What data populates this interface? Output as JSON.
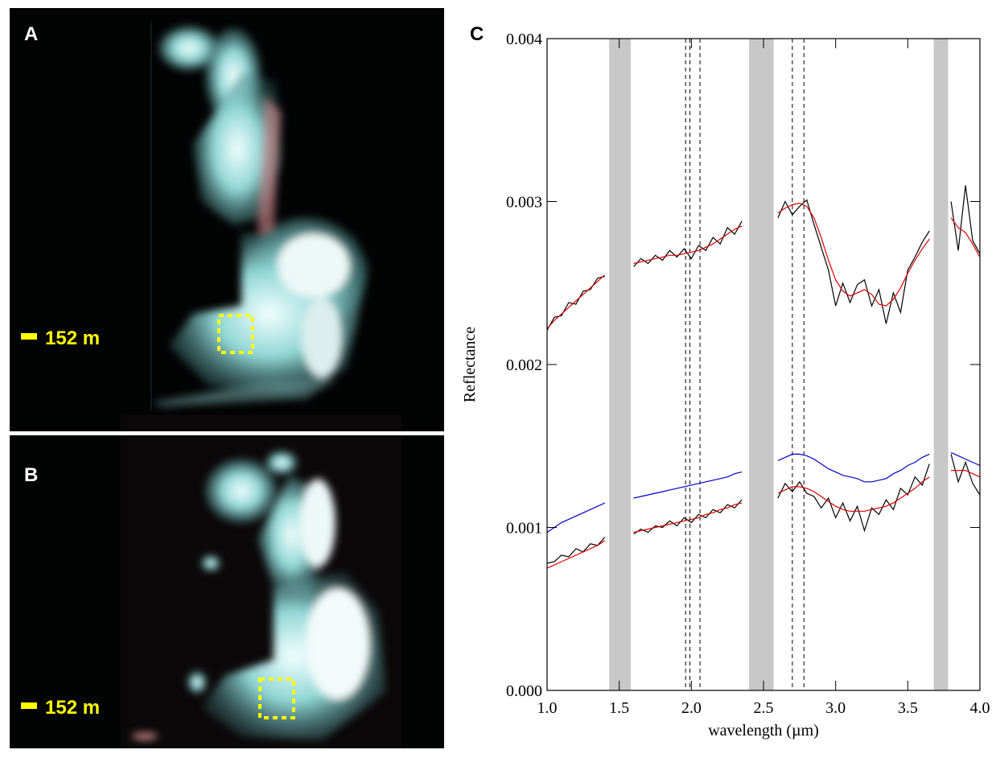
{
  "panels": [
    {
      "label": "A",
      "scale": "152 m"
    },
    {
      "label": "B",
      "scale": "152 m"
    }
  ],
  "chart_data": {
    "type": "line",
    "panel_label": "C",
    "xlabel": "wavelength (µm)",
    "ylabel": "Reflectance",
    "xlim": [
      1.0,
      4.0
    ],
    "ylim": [
      0.0,
      0.004
    ],
    "xticks": [
      {
        "value": 1.0,
        "label": "1.0"
      },
      {
        "value": 1.5,
        "label": "1.5"
      },
      {
        "value": 2.0,
        "label": "2.0"
      },
      {
        "value": 2.5,
        "label": "2.5"
      },
      {
        "value": 3.0,
        "label": "3.0"
      },
      {
        "value": 3.5,
        "label": "3.5"
      },
      {
        "value": 4.0,
        "label": "4.0"
      }
    ],
    "yticks": [
      {
        "value": 0.0,
        "label": "0.000"
      },
      {
        "value": 0.001,
        "label": "0.001"
      },
      {
        "value": 0.002,
        "label": "0.002"
      },
      {
        "value": 0.003,
        "label": "0.003"
      },
      {
        "value": 0.004,
        "label": "0.004"
      }
    ],
    "bands": [
      [
        1.43,
        1.58
      ],
      [
        2.4,
        2.57
      ],
      [
        3.68,
        3.78
      ]
    ],
    "band_color": "#c8c8c8",
    "vlines": [
      1.96,
      1.99,
      2.06,
      2.7,
      2.78
    ],
    "x": [
      1.0,
      1.05,
      1.1,
      1.15,
      1.2,
      1.25,
      1.3,
      1.35,
      1.4,
      1.45,
      1.5,
      1.55,
      1.6,
      1.65,
      1.7,
      1.75,
      1.8,
      1.85,
      1.9,
      1.95,
      2.0,
      2.05,
      2.1,
      2.15,
      2.2,
      2.25,
      2.3,
      2.35,
      2.4,
      2.45,
      2.5,
      2.55,
      2.6,
      2.65,
      2.7,
      2.75,
      2.8,
      2.85,
      2.9,
      2.95,
      3.0,
      3.05,
      3.1,
      3.15,
      3.2,
      3.25,
      3.3,
      3.35,
      3.4,
      3.45,
      3.5,
      3.55,
      3.6,
      3.65,
      3.7,
      3.75,
      3.8,
      3.85,
      3.9,
      3.95,
      4.0
    ],
    "series": [
      {
        "color": "#0000cc",
        "values": [
          0.00097,
          0.001,
          0.00103,
          0.00105,
          0.00107,
          0.00109,
          0.00111,
          0.00113,
          0.00115,
          null,
          null,
          null,
          0.00118,
          0.00119,
          0.0012,
          0.00121,
          0.00122,
          0.00123,
          0.00124,
          0.00125,
          0.00126,
          0.00127,
          0.00128,
          0.00129,
          0.0013,
          0.00131,
          0.00133,
          0.00134,
          null,
          null,
          null,
          null,
          0.00141,
          0.00143,
          0.00145,
          0.00145,
          0.00144,
          0.00142,
          0.00139,
          0.00136,
          0.00134,
          0.00132,
          0.00131,
          0.0013,
          0.00128,
          0.00128,
          0.00129,
          0.0013,
          0.00133,
          0.00135,
          0.00138,
          0.0014,
          0.00143,
          0.00145,
          null,
          null,
          0.00146,
          0.00144,
          0.00142,
          0.0014,
          0.00138
        ]
      },
      {
        "color": "#000000",
        "values": [
          0.00221,
          0.00229,
          0.0023,
          0.00238,
          0.00237,
          0.00245,
          0.00246,
          0.00253,
          0.00254,
          null,
          null,
          null,
          0.0026,
          0.00265,
          0.00262,
          0.00267,
          0.00264,
          0.0027,
          0.00266,
          0.00271,
          0.00265,
          0.00273,
          0.0027,
          0.00278,
          0.00274,
          0.00284,
          0.0028,
          0.00288,
          null,
          null,
          null,
          null,
          0.0029,
          0.003,
          0.00292,
          0.00297,
          0.00301,
          0.00286,
          0.00272,
          0.00258,
          0.00236,
          0.0025,
          0.00238,
          0.00249,
          0.00252,
          0.00236,
          0.00246,
          0.00225,
          0.00244,
          0.00232,
          0.00258,
          0.00266,
          0.00275,
          0.00282,
          null,
          null,
          0.003,
          0.0027,
          0.0031,
          0.00276,
          0.00268
        ]
      },
      {
        "color": "#dd0000",
        "values": [
          0.00222,
          0.00227,
          0.00231,
          0.00235,
          0.00239,
          0.00243,
          0.00247,
          0.00251,
          0.00255,
          null,
          null,
          null,
          0.00262,
          0.00263,
          0.00264,
          0.00265,
          0.00266,
          0.00267,
          0.00267,
          0.00268,
          0.00269,
          0.0027,
          0.00272,
          0.00274,
          0.00277,
          0.0028,
          0.00283,
          0.00285,
          null,
          null,
          null,
          null,
          0.00293,
          0.00296,
          0.00298,
          0.00299,
          0.00297,
          0.0029,
          0.00278,
          0.00264,
          0.00252,
          0.00245,
          0.00242,
          0.00244,
          0.00246,
          0.00243,
          0.00237,
          0.00236,
          0.0024,
          0.00247,
          0.00256,
          0.00264,
          0.00271,
          0.00277,
          null,
          null,
          0.0029,
          0.00284,
          0.00281,
          0.00274,
          0.00266
        ]
      },
      {
        "color": "#000000",
        "values": [
          0.00078,
          0.00079,
          0.00083,
          0.00082,
          0.00087,
          0.00085,
          0.0009,
          0.00089,
          0.00094,
          null,
          null,
          null,
          0.00096,
          0.00099,
          0.00097,
          0.00101,
          0.001,
          0.00104,
          0.00101,
          0.00106,
          0.00103,
          0.00108,
          0.00106,
          0.00111,
          0.00109,
          0.00114,
          0.00112,
          0.00117,
          null,
          null,
          null,
          null,
          0.00118,
          0.00127,
          0.00122,
          0.00128,
          0.00121,
          0.00119,
          0.00112,
          0.00118,
          0.00106,
          0.00115,
          0.00104,
          0.00113,
          0.00098,
          0.00112,
          0.00108,
          0.00117,
          0.00111,
          0.00124,
          0.0012,
          0.00131,
          0.00126,
          0.00139,
          null,
          null,
          0.00145,
          0.00128,
          0.0014,
          0.00127,
          0.0012
        ]
      },
      {
        "color": "#dd0000",
        "values": [
          0.00075,
          0.00077,
          0.00079,
          0.00081,
          0.00083,
          0.00085,
          0.00087,
          0.00089,
          0.00092,
          null,
          null,
          null,
          0.00097,
          0.00098,
          0.00099,
          0.001,
          0.00101,
          0.00102,
          0.00103,
          0.00104,
          0.00105,
          0.00106,
          0.00108,
          0.00109,
          0.00111,
          0.00112,
          0.00114,
          0.00115,
          null,
          null,
          null,
          null,
          0.00121,
          0.00123,
          0.00125,
          0.00125,
          0.00124,
          0.00122,
          0.00119,
          0.00116,
          0.00113,
          0.00111,
          0.0011,
          0.0011,
          0.0011,
          0.00111,
          0.00112,
          0.00113,
          0.00115,
          0.00118,
          0.00121,
          0.00124,
          0.00128,
          0.00131,
          null,
          null,
          0.00135,
          0.00135,
          0.00135,
          0.00133,
          0.00131
        ]
      }
    ]
  }
}
